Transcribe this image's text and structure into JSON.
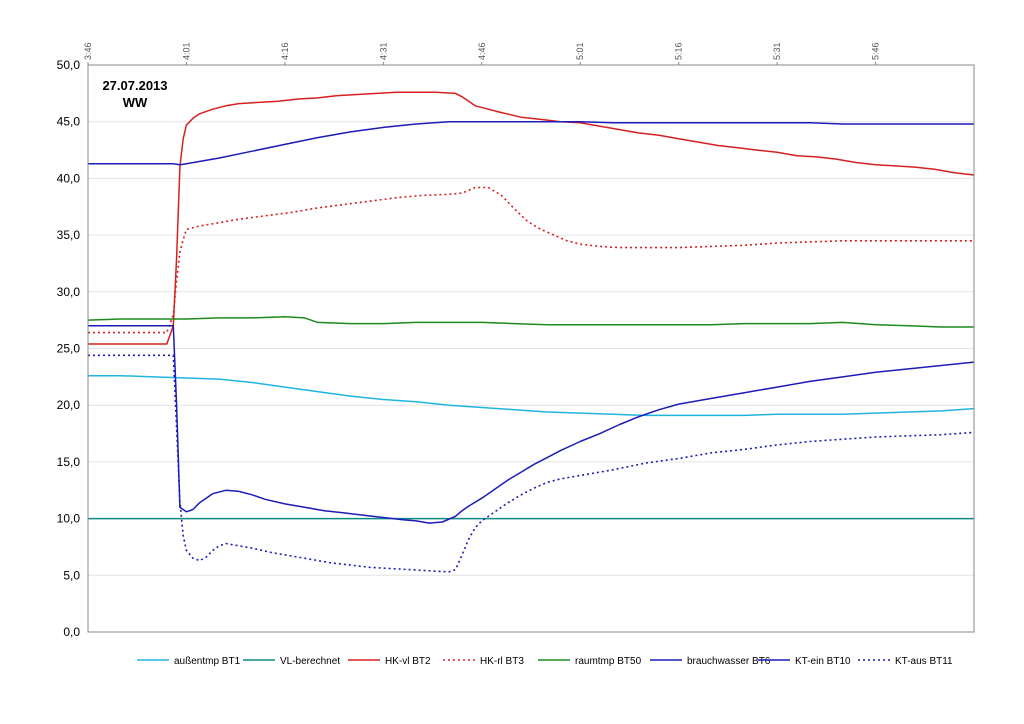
{
  "chart_data": {
    "type": "line",
    "title": "27.07.2013",
    "subtitle": "WW",
    "ylim": [
      0,
      50
    ],
    "y_ticks": [
      "0,0",
      "5,0",
      "10,0",
      "15,0",
      "20,0",
      "25,0",
      "30,0",
      "35,0",
      "40,0",
      "45,0",
      "50,0"
    ],
    "x_range_min": [
      0,
      135
    ],
    "x_ticks": [
      {
        "label": "3:46",
        "t": 0
      },
      {
        "label": "4:01",
        "t": 15
      },
      {
        "label": "4:16",
        "t": 30
      },
      {
        "label": "4:31",
        "t": 45
      },
      {
        "label": "4:46",
        "t": 60
      },
      {
        "label": "5:01",
        "t": 75
      },
      {
        "label": "5:16",
        "t": 90
      },
      {
        "label": "5:31",
        "t": 105
      },
      {
        "label": "5:46",
        "t": 120
      }
    ],
    "legend_position": "bottom",
    "grid": "horizontal",
    "series": [
      {
        "name": "außentmp BT1",
        "color": "#1fb5e0",
        "dash": "solid",
        "x": [
          0,
          5,
          10,
          15,
          20,
          25,
          30,
          35,
          40,
          45,
          50,
          55,
          60,
          65,
          70,
          75,
          80,
          85,
          90,
          95,
          100,
          105,
          110,
          115,
          120,
          125,
          130,
          135
        ],
        "y": [
          22.6,
          22.6,
          22.5,
          22.4,
          22.3,
          22.0,
          21.6,
          21.2,
          20.8,
          20.5,
          20.3,
          20.0,
          19.8,
          19.6,
          19.4,
          19.3,
          19.2,
          19.1,
          19.1,
          19.1,
          19.1,
          19.2,
          19.2,
          19.2,
          19.3,
          19.4,
          19.5,
          19.7
        ]
      },
      {
        "name": "VL-berechnet",
        "color": "#0e8c84",
        "dash": "solid",
        "x": [
          0,
          135
        ],
        "y": [
          10.0,
          10.0
        ]
      },
      {
        "name": "HK-vl BT2",
        "color": "#d62020",
        "dash": "solid",
        "x": [
          0,
          12,
          13,
          13.5,
          14,
          14.5,
          15,
          16,
          17,
          19,
          21,
          23,
          26,
          29,
          32,
          35,
          38,
          41,
          44,
          47,
          50,
          53,
          56,
          57,
          58,
          59,
          61,
          63,
          66,
          69,
          72,
          75,
          78,
          81,
          84,
          87,
          90,
          93,
          96,
          99,
          102,
          105,
          108,
          111,
          114,
          117,
          120,
          123,
          126,
          129,
          132,
          135
        ],
        "y": [
          25.4,
          25.4,
          27,
          33,
          41,
          43.5,
          44.7,
          45.3,
          45.7,
          46.1,
          46.4,
          46.6,
          46.7,
          46.8,
          47.0,
          47.1,
          47.3,
          47.4,
          47.5,
          47.6,
          47.6,
          47.6,
          47.5,
          47.2,
          46.8,
          46.4,
          46.1,
          45.8,
          45.4,
          45.2,
          45.0,
          44.9,
          44.6,
          44.3,
          44.0,
          43.8,
          43.5,
          43.2,
          42.9,
          42.7,
          42.5,
          42.3,
          42.0,
          41.9,
          41.7,
          41.4,
          41.2,
          41.1,
          41.0,
          40.8,
          40.5,
          40.3
        ]
      },
      {
        "name": "HK-rl BT3",
        "color": "#d62020",
        "dash": "dotted",
        "x": [
          0,
          12,
          13,
          13.5,
          14,
          14.5,
          15,
          17,
          19,
          23,
          27,
          31,
          35,
          39,
          43,
          47,
          51,
          55,
          57,
          59,
          61,
          63,
          65,
          67,
          69,
          71,
          73,
          75,
          78,
          81,
          84,
          87,
          90,
          95,
          100,
          105,
          110,
          115,
          120,
          125,
          130,
          135
        ],
        "y": [
          26.4,
          26.4,
          28,
          31,
          33.5,
          34.6,
          35.5,
          35.8,
          36.0,
          36.4,
          36.7,
          37.0,
          37.4,
          37.7,
          38.0,
          38.3,
          38.5,
          38.6,
          38.7,
          39.2,
          39.2,
          38.5,
          37.3,
          36.2,
          35.5,
          35.0,
          34.5,
          34.2,
          34.0,
          33.9,
          33.9,
          33.9,
          33.9,
          34.0,
          34.1,
          34.3,
          34.4,
          34.5,
          34.5,
          34.5,
          34.5,
          34.5
        ]
      },
      {
        "name": "raumtmp BT50",
        "color": "#1f8a1f",
        "dash": "solid",
        "x": [
          0,
          5,
          10,
          15,
          20,
          25,
          30,
          33,
          35,
          40,
          45,
          50,
          55,
          60,
          65,
          70,
          75,
          80,
          85,
          90,
          95,
          100,
          105,
          110,
          115,
          120,
          125,
          130,
          135
        ],
        "y": [
          27.5,
          27.6,
          27.6,
          27.6,
          27.7,
          27.7,
          27.8,
          27.7,
          27.3,
          27.2,
          27.2,
          27.3,
          27.3,
          27.3,
          27.2,
          27.1,
          27.1,
          27.1,
          27.1,
          27.1,
          27.1,
          27.2,
          27.2,
          27.2,
          27.3,
          27.1,
          27.0,
          26.9,
          26.9
        ]
      },
      {
        "name": "brauchwasser BT6",
        "color": "#1c1cb8",
        "dash": "solid",
        "x": [
          0,
          10,
          12,
          13,
          14,
          15,
          20,
          25,
          30,
          35,
          40,
          45,
          50,
          55,
          60,
          65,
          70,
          75,
          80,
          85,
          90,
          95,
          100,
          105,
          110,
          115,
          120,
          125,
          130,
          135
        ],
        "y": [
          41.3,
          41.3,
          41.3,
          41.3,
          41.2,
          41.3,
          41.8,
          42.4,
          43.0,
          43.6,
          44.1,
          44.5,
          44.8,
          45.0,
          45.0,
          45.0,
          45.0,
          45.0,
          44.9,
          44.9,
          44.9,
          44.9,
          44.9,
          44.9,
          44.9,
          44.8,
          44.8,
          44.8,
          44.8,
          44.8
        ]
      },
      {
        "name": "KT-ein BT10",
        "color": "#1c1cb8",
        "dash": "solid",
        "x": [
          0,
          13,
          13.5,
          14,
          15,
          16,
          17,
          19,
          21,
          23,
          25,
          27,
          30,
          33,
          36,
          39,
          42,
          45,
          48,
          50,
          52,
          54,
          56,
          57,
          58,
          60,
          62,
          64,
          66,
          68,
          70,
          72,
          75,
          78,
          81,
          84,
          87,
          90,
          95,
          100,
          105,
          110,
          115,
          120,
          125,
          130,
          135
        ],
        "y": [
          27.0,
          27.0,
          20,
          11,
          10.6,
          10.8,
          11.4,
          12.2,
          12.5,
          12.4,
          12.1,
          11.7,
          11.3,
          11.0,
          10.7,
          10.5,
          10.3,
          10.1,
          9.9,
          9.8,
          9.6,
          9.7,
          10.2,
          10.7,
          11.1,
          11.8,
          12.6,
          13.4,
          14.1,
          14.8,
          15.4,
          16.0,
          16.8,
          17.5,
          18.3,
          19.0,
          19.6,
          20.1,
          20.6,
          21.1,
          21.6,
          22.1,
          22.5,
          22.9,
          23.2,
          23.5,
          23.8
        ]
      },
      {
        "name": "KT-aus BT11",
        "color": "#1c1cb8",
        "dash": "dotted",
        "x": [
          0,
          13,
          13.5,
          14,
          14.5,
          15,
          16,
          17,
          18,
          19,
          20,
          21,
          22,
          25,
          28,
          31,
          34,
          37,
          40,
          43,
          46,
          49,
          52,
          55,
          56,
          57,
          58,
          59,
          60,
          62,
          64,
          66,
          68,
          70,
          72,
          75,
          80,
          85,
          90,
          95,
          100,
          105,
          110,
          115,
          120,
          125,
          130,
          135
        ],
        "y": [
          24.4,
          24.4,
          18,
          11.5,
          8.5,
          7.2,
          6.5,
          6.3,
          6.6,
          7.2,
          7.6,
          7.8,
          7.7,
          7.4,
          7.0,
          6.7,
          6.4,
          6.1,
          5.9,
          5.7,
          5.6,
          5.5,
          5.4,
          5.3,
          5.5,
          6.8,
          8.2,
          9.2,
          9.8,
          10.6,
          11.4,
          12.1,
          12.7,
          13.2,
          13.5,
          13.8,
          14.3,
          14.9,
          15.3,
          15.8,
          16.1,
          16.5,
          16.8,
          17.0,
          17.2,
          17.3,
          17.4,
          17.6
        ]
      }
    ]
  }
}
